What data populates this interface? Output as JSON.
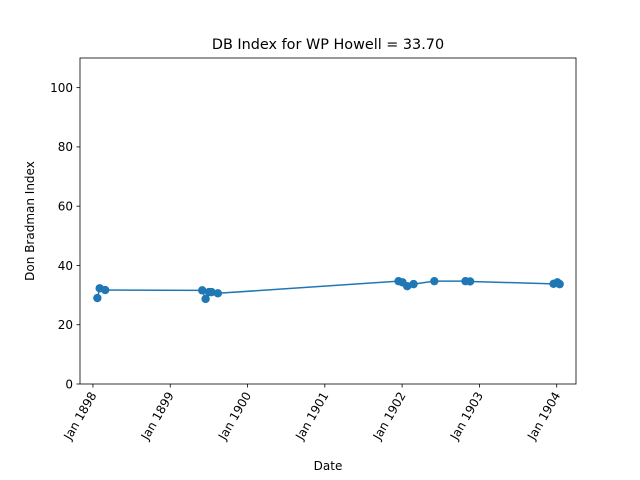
{
  "chart_data": {
    "type": "line",
    "title": "DB Index for WP Howell = 33.70",
    "xlabel": "Date",
    "ylabel": "Don Bradman Index",
    "x_axis": "date",
    "xlim": [
      "1897-11-01",
      "1904-04-01"
    ],
    "ylim": [
      0,
      110
    ],
    "x_ticks": [
      {
        "date": "1898-01-01",
        "label": "Jan 1898"
      },
      {
        "date": "1899-01-01",
        "label": "Jan 1899"
      },
      {
        "date": "1900-01-01",
        "label": "Jan 1900"
      },
      {
        "date": "1901-01-01",
        "label": "Jan 1901"
      },
      {
        "date": "1902-01-01",
        "label": "Jan 1902"
      },
      {
        "date": "1903-01-01",
        "label": "Jan 1903"
      },
      {
        "date": "1904-01-01",
        "label": "Jan 1904"
      }
    ],
    "y_ticks": [
      0,
      20,
      40,
      60,
      80,
      100
    ],
    "grid": false,
    "marker": "circle",
    "color": "#1f77b4",
    "points": [
      {
        "x": "1898-01-22",
        "y": 29.0
      },
      {
        "x": "1898-02-02",
        "y": 32.3
      },
      {
        "x": "1898-02-28",
        "y": 31.7
      },
      {
        "x": "1899-06-01",
        "y": 31.6
      },
      {
        "x": "1899-06-17",
        "y": 28.7
      },
      {
        "x": "1899-07-03",
        "y": 31.0
      },
      {
        "x": "1899-07-15",
        "y": 31.0
      },
      {
        "x": "1899-08-14",
        "y": 30.6
      },
      {
        "x": "1901-12-15",
        "y": 34.7
      },
      {
        "x": "1902-01-03",
        "y": 34.3
      },
      {
        "x": "1902-01-25",
        "y": 33.0
      },
      {
        "x": "1902-02-24",
        "y": 33.7
      },
      {
        "x": "1902-06-02",
        "y": 34.7
      },
      {
        "x": "1902-10-27",
        "y": 34.7
      },
      {
        "x": "1902-11-18",
        "y": 34.6
      },
      {
        "x": "1903-12-17",
        "y": 33.8
      },
      {
        "x": "1904-01-04",
        "y": 34.3
      },
      {
        "x": "1904-01-15",
        "y": 33.7
      }
    ]
  }
}
